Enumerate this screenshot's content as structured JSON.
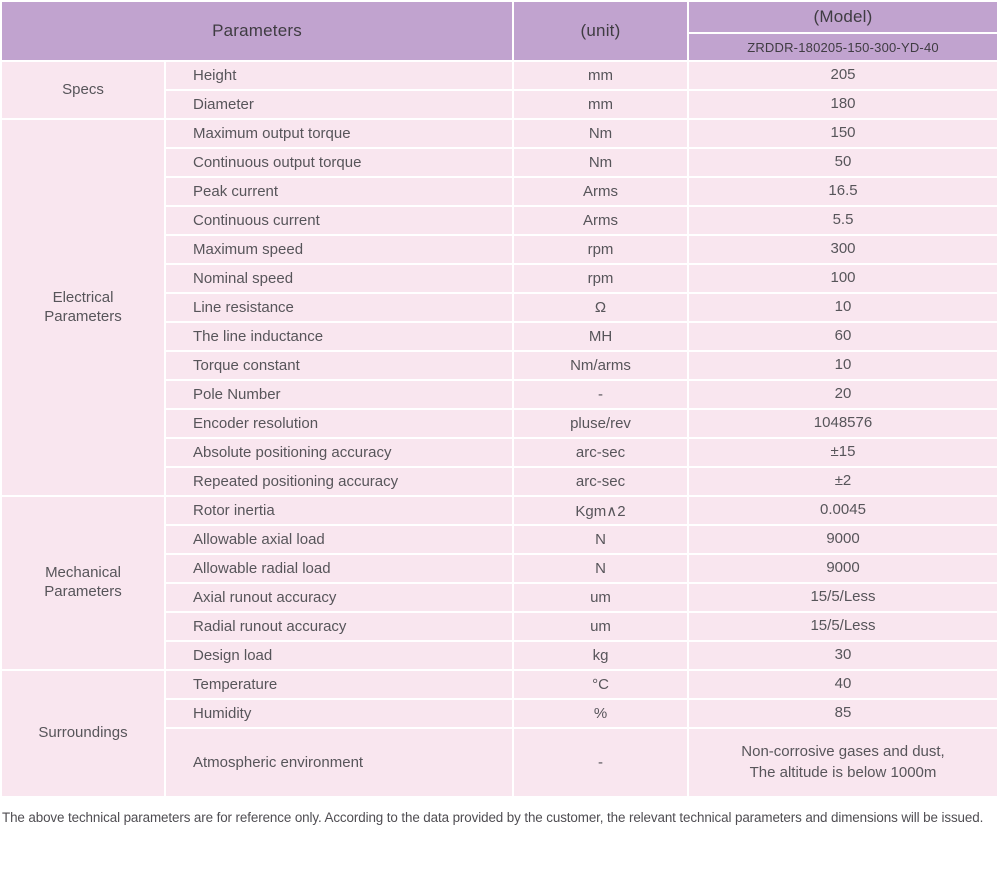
{
  "colors": {
    "header_bg": "#c1a3cf",
    "row_bg": "#f9e6ef",
    "grid_line": "#ffffff",
    "header_text": "#3f3c42",
    "body_text": "#57555a"
  },
  "header": {
    "parameters_label": "Parameters",
    "unit_label": "(unit)",
    "model_label": "(Model)",
    "model_value": "ZRDDR-180205-150-300-YD-40"
  },
  "sections": [
    {
      "group": "Specs",
      "rows": [
        {
          "param": "Height",
          "unit": "mm",
          "value": "205"
        },
        {
          "param": "Diameter",
          "unit": "mm",
          "value": "180"
        }
      ]
    },
    {
      "group": "Electrical\nParameters",
      "rows": [
        {
          "param": "Maximum output torque",
          "unit": "Nm",
          "value": "150"
        },
        {
          "param": "Continuous output torque",
          "unit": "Nm",
          "value": "50"
        },
        {
          "param": "Peak current",
          "unit": "Arms",
          "value": "16.5"
        },
        {
          "param": "Continuous current",
          "unit": "Arms",
          "value": "5.5"
        },
        {
          "param": "Maximum speed",
          "unit": "rpm",
          "value": "300"
        },
        {
          "param": "Nominal speed",
          "unit": "rpm",
          "value": "100"
        },
        {
          "param": "Line resistance",
          "unit": "Ω",
          "value": "10"
        },
        {
          "param": "The line inductance",
          "unit": "MH",
          "value": "60"
        },
        {
          "param": "Torque constant",
          "unit": "Nm/arms",
          "value": "10"
        },
        {
          "param": "Pole Number",
          "unit": "-",
          "value": "20"
        },
        {
          "param": "Encoder resolution",
          "unit": "pluse/rev",
          "value": "1048576"
        },
        {
          "param": "Absolute positioning accuracy",
          "unit": "arc-sec",
          "value": "±15"
        },
        {
          "param": "Repeated positioning accuracy",
          "unit": "arc-sec",
          "value": "±2"
        }
      ]
    },
    {
      "group": "Mechanical\nParameters",
      "rows": [
        {
          "param": "Rotor inertia",
          "unit": "Kgm∧2",
          "value": "0.0045"
        },
        {
          "param": "Allowable axial load",
          "unit": "N",
          "value": "9000"
        },
        {
          "param": "Allowable radial load",
          "unit": "N",
          "value": "9000"
        },
        {
          "param": "Axial runout accuracy",
          "unit": "um",
          "value": "15/5/Less"
        },
        {
          "param": "Radial runout accuracy",
          "unit": "um",
          "value": "15/5/Less"
        },
        {
          "param": "Design load",
          "unit": "kg",
          "value": "30"
        }
      ]
    },
    {
      "group": "Surroundings",
      "rows": [
        {
          "param": "Temperature",
          "unit": "°C",
          "value": "40"
        },
        {
          "param": "Humidity",
          "unit": "%",
          "value": "85"
        },
        {
          "param": "Atmospheric environment",
          "unit": "-",
          "value": "Non-corrosive gases and dust,\nThe altitude is below 1000m",
          "tall": true
        }
      ]
    }
  ],
  "footer": {
    "note": "The above technical parameters are for reference only. According to the data provided by the customer, the relevant technical parameters and dimensions will be issued."
  }
}
